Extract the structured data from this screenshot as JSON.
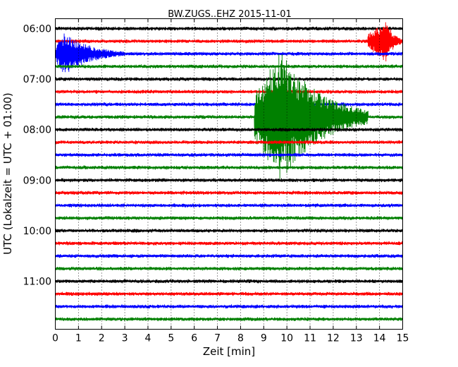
{
  "chart_data": {
    "type": "line",
    "title": "BW.ZUGS..EHZ 2015-11-01",
    "xlabel": "Zeit  [min]",
    "ylabel": "UTC (Lokalzeit = UTC + 01:00)",
    "xlim": [
      0,
      15
    ],
    "x_ticks": [
      "0",
      "1",
      "2",
      "3",
      "4",
      "5",
      "6",
      "7",
      "8",
      "9",
      "10",
      "11",
      "12",
      "13",
      "14",
      "15"
    ],
    "y_ticks": [
      "06:00",
      "07:00",
      "08:00",
      "09:00",
      "10:00",
      "11:00"
    ],
    "grid": "vertical dotted",
    "row_interval_min": 15,
    "rows": [
      {
        "start": "06:00",
        "color": "#000000"
      },
      {
        "start": "06:15",
        "color": "#ff0000"
      },
      {
        "start": "06:30",
        "color": "#0000ff"
      },
      {
        "start": "06:45",
        "color": "#008000"
      },
      {
        "start": "07:00",
        "color": "#000000"
      },
      {
        "start": "07:15",
        "color": "#ff0000"
      },
      {
        "start": "07:30",
        "color": "#0000ff"
      },
      {
        "start": "07:45",
        "color": "#008000"
      },
      {
        "start": "08:00",
        "color": "#000000"
      },
      {
        "start": "08:15",
        "color": "#ff0000"
      },
      {
        "start": "08:30",
        "color": "#0000ff"
      },
      {
        "start": "08:45",
        "color": "#008000"
      },
      {
        "start": "09:00",
        "color": "#000000"
      },
      {
        "start": "09:15",
        "color": "#ff0000"
      },
      {
        "start": "09:30",
        "color": "#0000ff"
      },
      {
        "start": "09:45",
        "color": "#008000"
      },
      {
        "start": "10:00",
        "color": "#000000"
      },
      {
        "start": "10:15",
        "color": "#ff0000"
      },
      {
        "start": "10:30",
        "color": "#0000ff"
      },
      {
        "start": "10:45",
        "color": "#008000"
      },
      {
        "start": "11:00",
        "color": "#000000"
      },
      {
        "start": "11:15",
        "color": "#ff0000"
      },
      {
        "start": "11:30",
        "color": "#0000ff"
      },
      {
        "start": "11:45",
        "color": "#008000"
      }
    ],
    "events": [
      {
        "row": "06:30",
        "x_start_min": 0.0,
        "x_end_min": 3.0,
        "peak_min": 0.4,
        "amplitude": "large"
      },
      {
        "row": "06:15",
        "x_start_min": 13.5,
        "x_end_min": 15.0,
        "peak_min": 14.3,
        "amplitude": "large"
      },
      {
        "row": "07:45",
        "x_start_min": 8.6,
        "x_end_min": 13.5,
        "peak_min": 9.7,
        "amplitude": "very large"
      }
    ]
  }
}
